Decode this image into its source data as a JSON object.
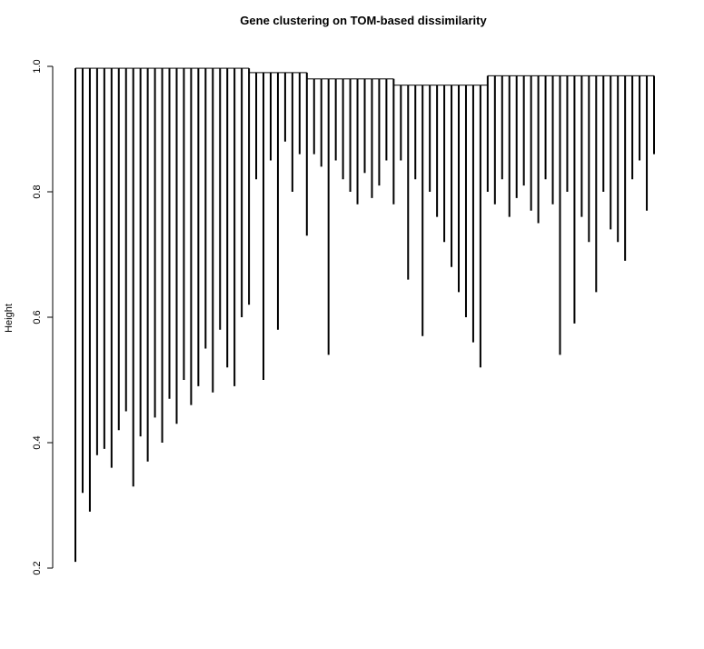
{
  "chart_data": {
    "type": "dendrogram",
    "title": "Gene clustering on TOM-based dissimilarity",
    "ylabel": "Height",
    "ylim": [
      0.2,
      1.0
    ],
    "yticks": [
      0.2,
      0.4,
      0.6,
      0.8,
      {
        "value": 1,
        "label": "1.0"
      }
    ],
    "color": "#000000",
    "leaves": [
      0.21,
      0.32,
      0.29,
      0.38,
      0.39,
      0.36,
      0.42,
      0.45,
      0.33,
      0.41,
      0.37,
      0.44,
      0.4,
      0.47,
      0.43,
      0.5,
      0.46,
      0.49,
      0.55,
      0.48,
      0.58,
      0.52,
      0.49,
      0.6,
      0.62,
      0.82,
      0.5,
      0.85,
      0.58,
      0.88,
      0.8,
      0.86,
      0.73,
      0.86,
      0.84,
      0.54,
      0.85,
      0.82,
      0.8,
      0.78,
      0.83,
      0.79,
      0.81,
      0.85,
      0.78,
      0.85,
      0.66,
      0.82,
      0.57,
      0.8,
      0.76,
      0.72,
      0.68,
      0.64,
      0.6,
      0.56,
      0.52,
      0.8,
      0.78,
      0.82,
      0.76,
      0.79,
      0.81,
      0.77,
      0.75,
      0.82,
      0.78,
      0.54,
      0.8,
      0.59,
      0.76,
      0.72,
      0.64,
      0.8,
      0.74,
      0.72,
      0.69,
      0.82,
      0.85,
      0.77,
      0.86
    ],
    "merges": [
      0.997,
      0.997,
      0.997,
      0.997,
      0.997,
      0.997,
      0.997,
      0.997,
      0.997,
      0.997,
      0.997,
      0.997,
      0.997,
      0.997,
      0.997,
      0.997,
      0.997,
      0.997,
      0.997,
      0.997,
      0.997,
      0.997,
      0.997,
      0.997,
      0.997,
      0.99,
      0.99,
      0.99,
      0.99,
      0.99,
      0.99,
      0.99,
      0.99,
      0.98,
      0.98,
      0.98,
      0.98,
      0.98,
      0.98,
      0.98,
      0.98,
      0.98,
      0.98,
      0.98,
      0.98,
      0.97,
      0.97,
      0.97,
      0.97,
      0.97,
      0.97,
      0.97,
      0.97,
      0.97,
      0.97,
      0.97,
      0.97,
      0.985,
      0.985,
      0.985,
      0.985,
      0.985,
      0.985,
      0.985,
      0.985,
      0.985,
      0.985,
      0.985,
      0.985,
      0.985,
      0.985,
      0.985,
      0.985,
      0.985,
      0.985,
      0.985,
      0.985,
      0.985,
      0.985,
      0.985,
      0.985
    ]
  }
}
